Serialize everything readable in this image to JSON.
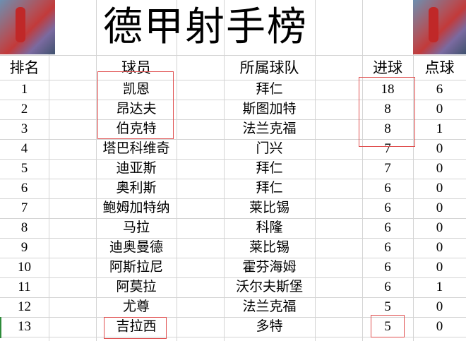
{
  "title": "德甲射手榜",
  "images": {
    "left": "anime-basketball-player-image",
    "right": "anime-basketball-player-image"
  },
  "headers": {
    "rank": "排名",
    "player": "球员",
    "team": "所属球队",
    "goals": "进球",
    "penalties": "点球"
  },
  "rows": [
    {
      "rank": "1",
      "player": "凯恩",
      "team": "拜仁",
      "goals": "18",
      "penalties": "6"
    },
    {
      "rank": "2",
      "player": "昂达夫",
      "team": "斯图加特",
      "goals": "8",
      "penalties": "0"
    },
    {
      "rank": "3",
      "player": "伯克特",
      "team": "法兰克福",
      "goals": "8",
      "penalties": "1"
    },
    {
      "rank": "4",
      "player": "塔巴科维奇",
      "team": "门兴",
      "goals": "7",
      "penalties": "0"
    },
    {
      "rank": "5",
      "player": "迪亚斯",
      "team": "拜仁",
      "goals": "7",
      "penalties": "0"
    },
    {
      "rank": "6",
      "player": "奥利斯",
      "team": "拜仁",
      "goals": "6",
      "penalties": "0"
    },
    {
      "rank": "7",
      "player": "鲍姆加特纳",
      "team": "莱比锡",
      "goals": "6",
      "penalties": "0"
    },
    {
      "rank": "8",
      "player": "马拉",
      "team": "科隆",
      "goals": "6",
      "penalties": "0"
    },
    {
      "rank": "9",
      "player": "迪奥曼德",
      "team": "莱比锡",
      "goals": "6",
      "penalties": "0"
    },
    {
      "rank": "10",
      "player": "阿斯拉尼",
      "team": "霍芬海姆",
      "goals": "6",
      "penalties": "0"
    },
    {
      "rank": "11",
      "player": "阿莫拉",
      "team": "沃尔夫斯堡",
      "goals": "6",
      "penalties": "1"
    },
    {
      "rank": "12",
      "player": "尤尊",
      "team": "法兰克福",
      "goals": "5",
      "penalties": "0"
    },
    {
      "rank": "13",
      "player": "吉拉西",
      "team": "多特",
      "goals": "5",
      "penalties": "0"
    }
  ],
  "highlight_color": "#e05050"
}
